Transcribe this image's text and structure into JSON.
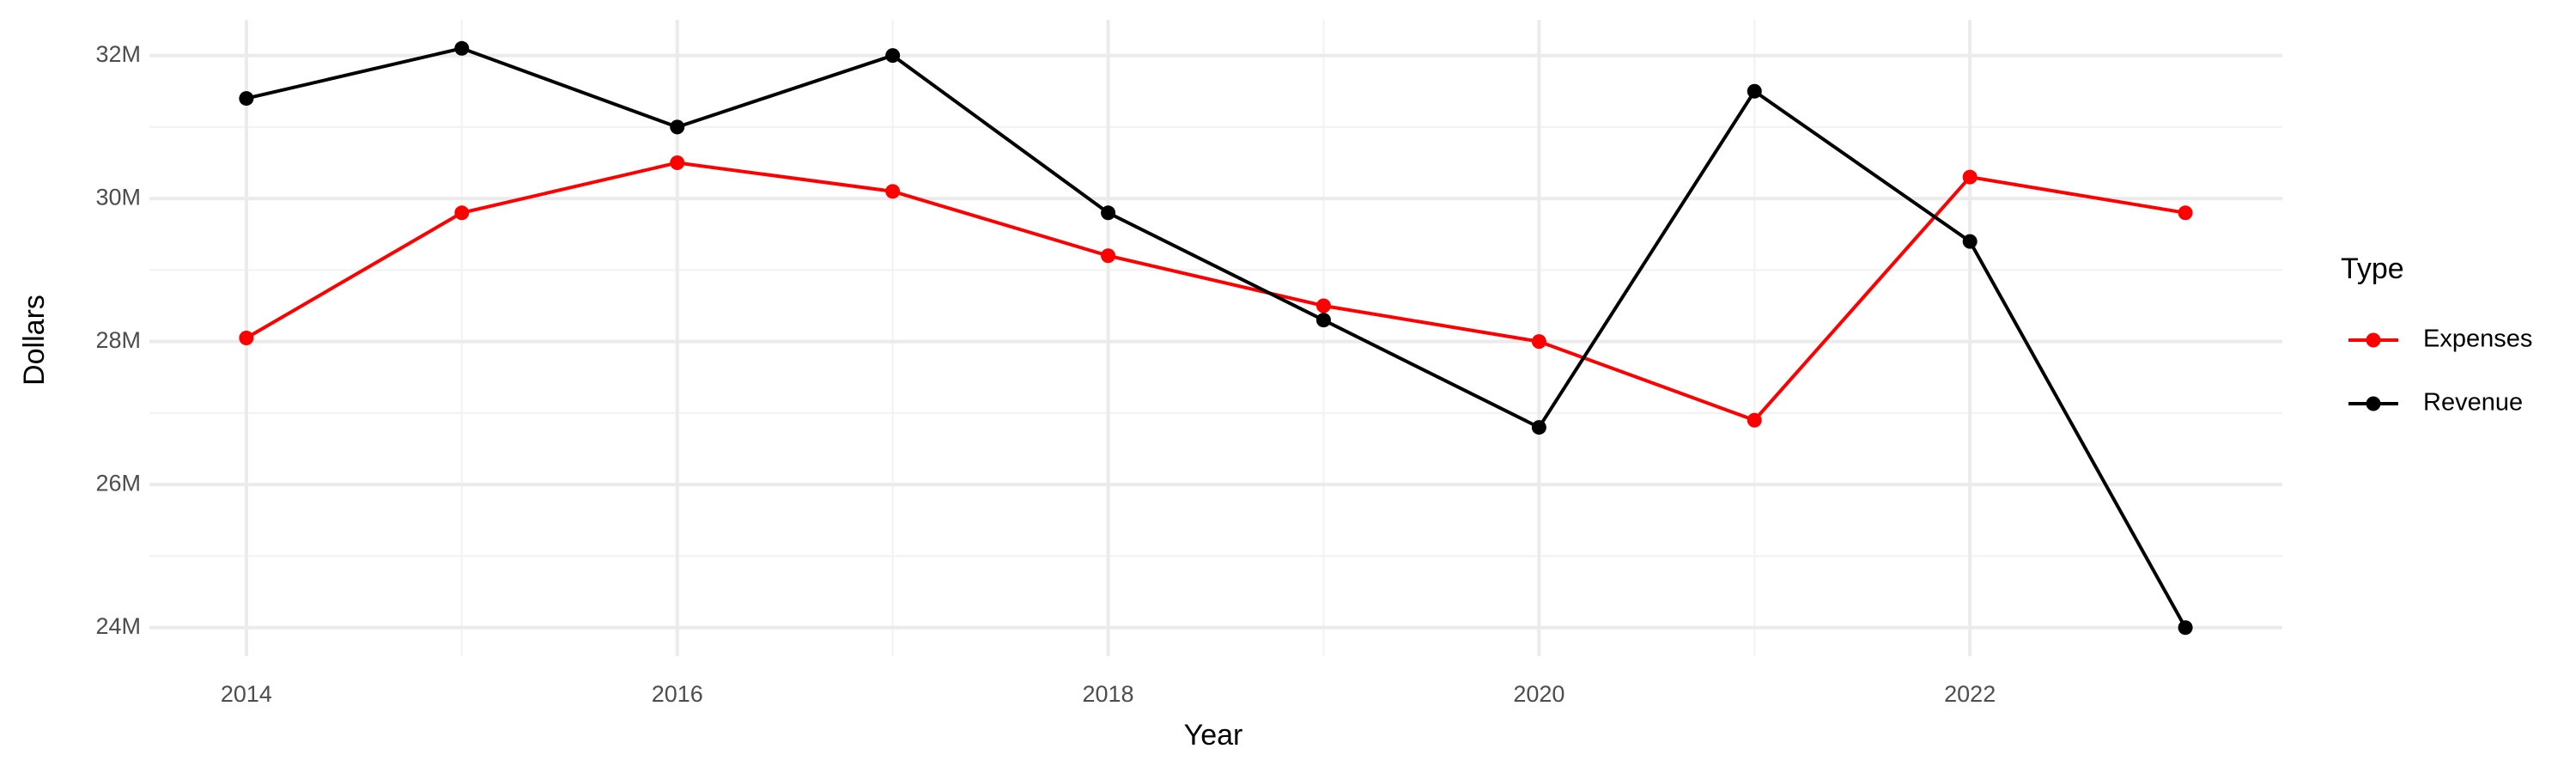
{
  "chart_data": {
    "type": "line",
    "x_label": "Year",
    "y_label": "Dollars",
    "legend_title": "Type",
    "x": [
      2014,
      2015,
      2016,
      2017,
      2018,
      2019,
      2020,
      2021,
      2022,
      2023
    ],
    "series": [
      {
        "name": "Expenses",
        "color": "#ff0000",
        "values": [
          28050000,
          29800000,
          30500000,
          30100000,
          29200000,
          28500000,
          28000000,
          26900000,
          30300000,
          29800000
        ]
      },
      {
        "name": "Revenue",
        "color": "#000000",
        "values": [
          31400000,
          32100000,
          31000000,
          32000000,
          29800000,
          28300000,
          26800000,
          31500000,
          29400000,
          24000000
        ]
      }
    ],
    "xlim": [
      2013.55,
      2023.45
    ],
    "xticks": [
      2014,
      2016,
      2018,
      2020,
      2022
    ],
    "ylim": [
      23600000,
      32500000
    ],
    "yticks": [
      {
        "value": 24000000,
        "label": "24M"
      },
      {
        "value": 26000000,
        "label": "26M"
      },
      {
        "value": 28000000,
        "label": "28M"
      },
      {
        "value": 30000000,
        "label": "30M"
      },
      {
        "value": 32000000,
        "label": "32M"
      }
    ],
    "grid": true,
    "legend": "right"
  }
}
